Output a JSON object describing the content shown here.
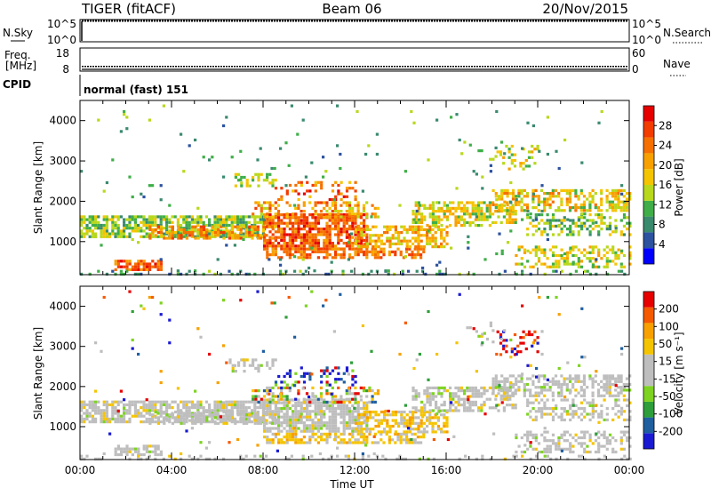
{
  "header": {
    "radar": "TIGER (fitACF)",
    "beam": "Beam 06",
    "date": "20/Nov/2015"
  },
  "strips": {
    "nsky": {
      "label": "N.Sky",
      "ticks": [
        "10^5",
        "10^0"
      ]
    },
    "nsearch": {
      "label": "N.Search",
      "ticks": [
        "10^5",
        "10^0"
      ]
    },
    "freq": {
      "label_line1": "Freq.",
      "label_line2": "[MHz]",
      "ticks": [
        "18",
        "8"
      ],
      "value_mhz": 10
    },
    "nave": {
      "label": "Nave",
      "ticks": [
        "60",
        "0"
      ]
    },
    "cpid": {
      "label": "CPID",
      "text": "normal (fast) 151"
    }
  },
  "colors": {
    "power": [
      "#0000ff",
      "#2c52a0",
      "#3a8a6e",
      "#3fae48",
      "#b8d81c",
      "#f5c400",
      "#f7a000",
      "#f57000",
      "#f23c00",
      "#e60000"
    ],
    "velocity": [
      "#e60000",
      "#f55a00",
      "#f7a000",
      "#f5c400",
      "#bebebe",
      "#bebebe",
      "#7ed321",
      "#2e9e3a",
      "#1f5fa0",
      "#1a1ad2"
    ]
  },
  "chart_data": [
    {
      "type": "heatmap",
      "name": "power",
      "ylabel": "Slant Range [km]",
      "yticks": [
        "1000",
        "2000",
        "3000",
        "4000"
      ],
      "ylim": [
        180,
        4500
      ],
      "xlim_hours": [
        0,
        24
      ],
      "colorbar": {
        "label": "Power [dB]",
        "ticks": [
          "4",
          "8",
          "12",
          "16",
          "20",
          "24",
          "28"
        ],
        "range": [
          0,
          30
        ]
      }
    },
    {
      "type": "heatmap",
      "name": "velocity",
      "ylabel": "Slant Range [km]",
      "yticks": [
        "1000",
        "2000",
        "3000",
        "4000"
      ],
      "ylim": [
        180,
        4500
      ],
      "xlim_hours": [
        0,
        24
      ],
      "colorbar": {
        "label": "Velocity [m s⁻¹]",
        "ticks": [
          "-200",
          "-100",
          "-50",
          "-15",
          "15",
          "50",
          "100",
          "200"
        ]
      }
    }
  ],
  "xaxis": {
    "ticks": [
      "00:00",
      "04:00",
      "08:00",
      "12:00",
      "16:00",
      "20:00",
      "00:00"
    ],
    "label": "Time UT"
  }
}
